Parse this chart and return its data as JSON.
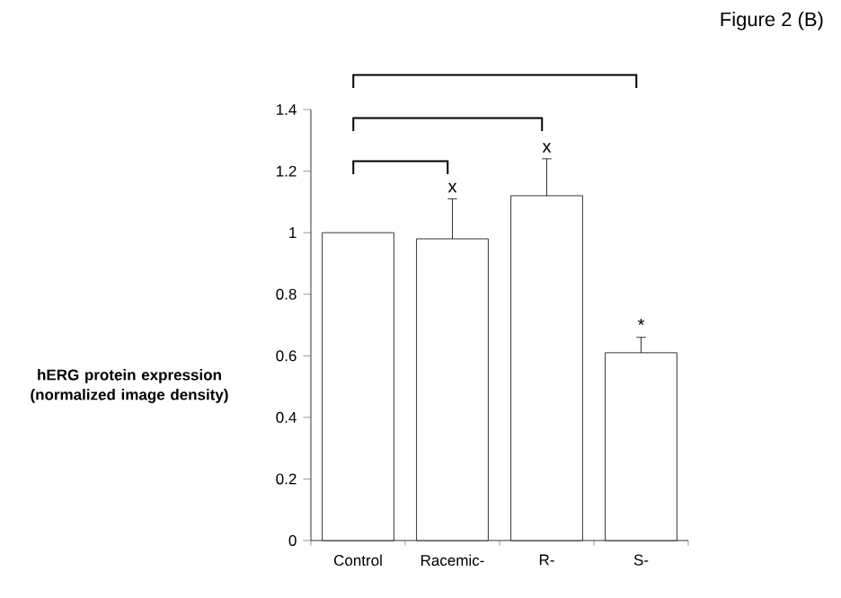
{
  "chart_data": {
    "type": "bar",
    "title": "Figure 2 (B)",
    "ylabel": "hERG protein expression (normalized image density)",
    "categories": [
      "Control",
      "Racemic-",
      "R-",
      "S-"
    ],
    "values": [
      1.0,
      0.98,
      1.12,
      0.61
    ],
    "errors": [
      null,
      [
        0.98,
        1.11
      ],
      [
        1.12,
        1.24
      ],
      [
        0.61,
        0.66
      ]
    ],
    "color": "#ffffff",
    "ylim": [
      0,
      1.4
    ],
    "yticks": [
      0,
      0.2,
      0.4,
      0.6,
      0.8,
      1,
      1.2,
      1.4
    ],
    "annotations": [
      "x",
      "x",
      "*"
    ],
    "grid": false
  }
}
